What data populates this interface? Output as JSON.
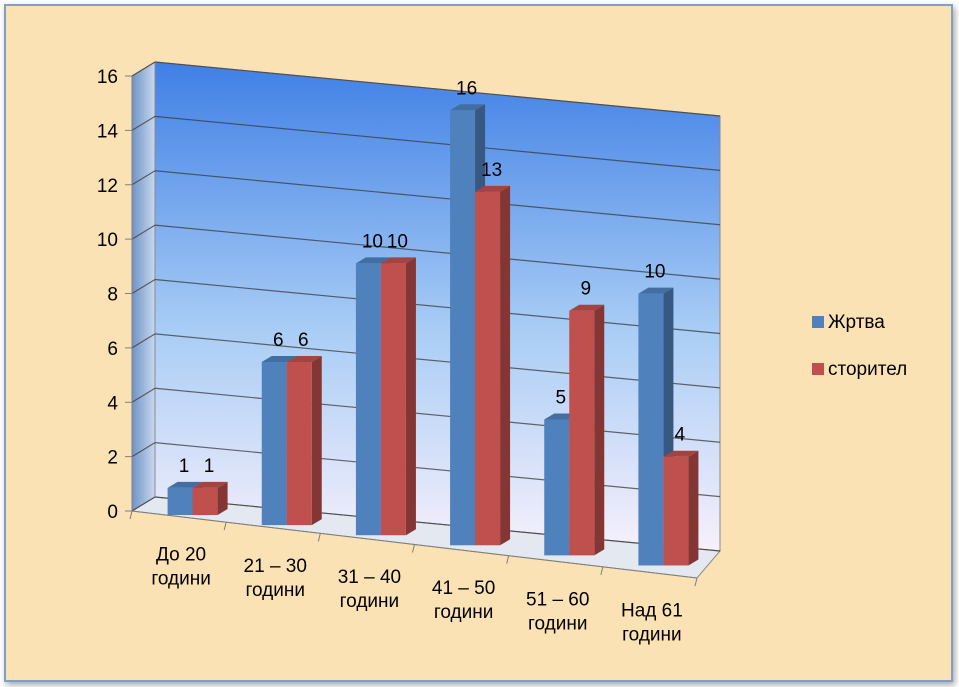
{
  "chart_data": {
    "type": "bar",
    "title": "",
    "xlabel": "",
    "ylabel": "",
    "ylim": [
      0,
      16
    ],
    "yticks": [
      0,
      2,
      4,
      6,
      8,
      10,
      12,
      14,
      16
    ],
    "grid": true,
    "legend_position": "right",
    "categories": [
      [
        "До 20",
        "години"
      ],
      [
        "21 – 30",
        "години"
      ],
      [
        "31 – 40",
        "години"
      ],
      [
        "41 – 50",
        "години"
      ],
      [
        "51 – 60",
        "години"
      ],
      [
        "Над 61",
        "години"
      ]
    ],
    "series": [
      {
        "name": "Жртва",
        "color": "#4f81bd",
        "values": [
          1,
          6,
          10,
          16,
          5,
          10
        ]
      },
      {
        "name": "сторител",
        "color": "#c0504d",
        "values": [
          1,
          6,
          10,
          13,
          9,
          4
        ]
      }
    ]
  }
}
